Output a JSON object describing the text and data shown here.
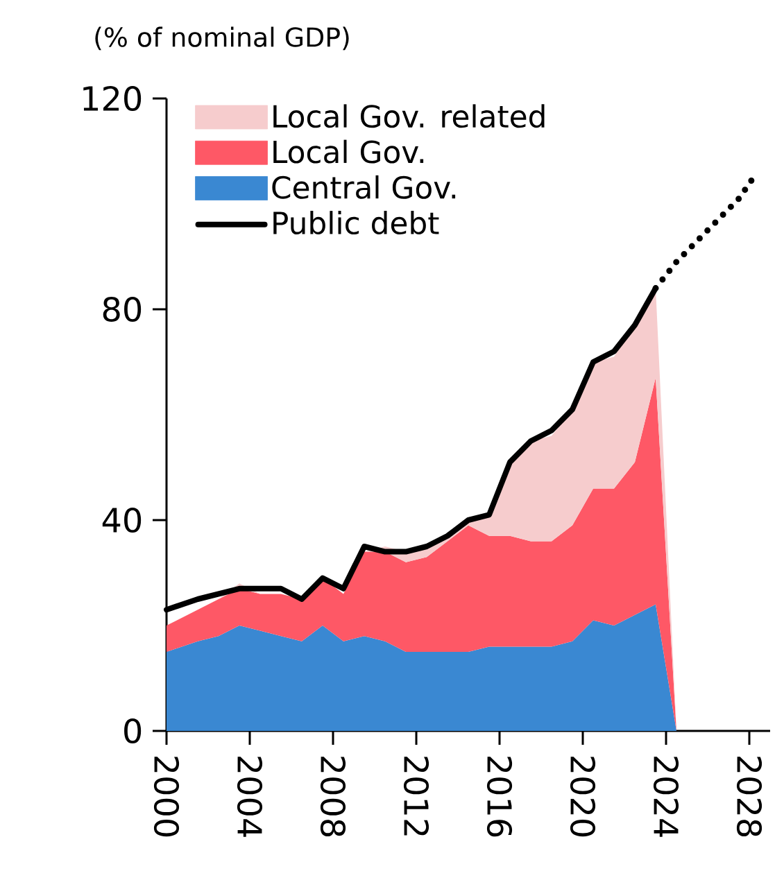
{
  "chart_data": {
    "type": "area",
    "ylabel": "(% of nominal GDP)",
    "stacked": true,
    "legend": "top left",
    "x": [
      2000,
      2001.5,
      2002.5,
      2003.5,
      2004.5,
      2005.5,
      2006.5,
      2007.5,
      2008.5,
      2009.5,
      2010.5,
      2011.5,
      2012.5,
      2013.5,
      2014.5,
      2015.5,
      2016.5,
      2017.5,
      2018.5,
      2019.5,
      2020.5,
      2021.5,
      2022.5,
      2023.5,
      2024.5
    ],
    "series": [
      {
        "name": "Central Gov.",
        "color": "#3a88d2",
        "values": [
          15,
          17,
          18,
          20,
          19,
          18,
          17,
          20,
          17,
          18,
          17,
          15,
          15,
          15,
          15,
          16,
          16,
          16,
          16,
          17,
          21,
          20,
          22,
          24,
          0
        ]
      },
      {
        "name": "Local Gov.",
        "color": "#fe5866",
        "values": [
          5,
          6,
          7,
          7,
          7,
          8,
          8,
          9,
          9,
          16,
          17,
          17,
          18,
          21,
          24,
          21,
          21,
          20,
          20,
          22,
          25,
          26,
          29,
          43,
          0
        ]
      },
      {
        "name": "Local Gov. related",
        "color": "#f6cccd",
        "values": [
          0,
          0,
          0,
          1,
          0,
          0,
          0,
          0,
          0,
          0,
          1,
          2,
          2,
          1,
          1,
          4,
          14,
          19,
          20,
          22,
          24,
          25,
          26,
          17,
          0
        ]
      },
      {
        "name": "Public debt",
        "type": "line",
        "line_style": "solid",
        "color": "#000000",
        "values": [
          23,
          25,
          26,
          27,
          27,
          27,
          25,
          29,
          27,
          35,
          34,
          34,
          35,
          37,
          40,
          41,
          51,
          55,
          57,
          61,
          70,
          72,
          77,
          84,
          null
        ]
      },
      {
        "type": "line",
        "line_style": "dotted",
        "color": "#000000",
        "x": [
          2023.5,
          2024.5,
          2025.5,
          2026.5,
          2027.5,
          2028.2
        ],
        "values": [
          84,
          89,
          93,
          97,
          101,
          105
        ]
      }
    ],
    "xlim": [
      2000,
      2029
    ],
    "ylim": [
      0,
      120
    ],
    "xticks": [
      2000,
      2004,
      2008,
      2012,
      2016,
      2020,
      2024,
      2028
    ],
    "yticks": [
      0,
      40,
      80,
      120
    ]
  }
}
